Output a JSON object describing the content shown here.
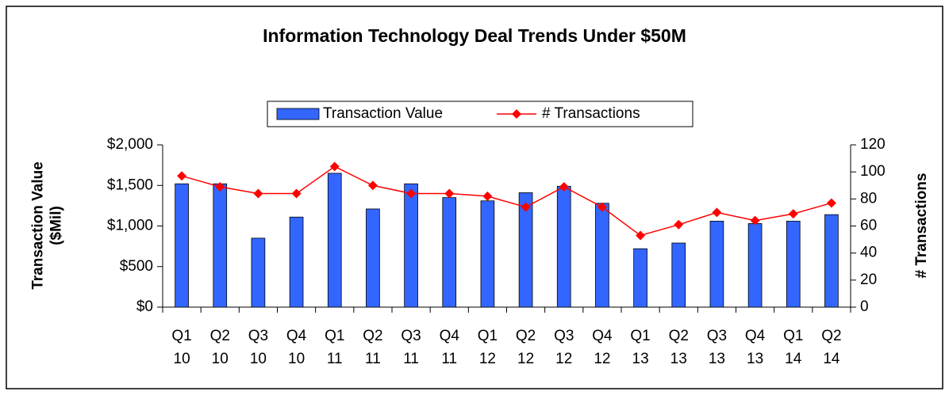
{
  "chart_data": {
    "type": "bar_line",
    "title": "Information Technology Deal Trends Under $50M",
    "y_label": "Transaction Value ($Mil)",
    "y2_label": "# Transactions",
    "categories": [
      [
        "Q1",
        "10"
      ],
      [
        "Q2",
        "10"
      ],
      [
        "Q3",
        "10"
      ],
      [
        "Q4",
        "10"
      ],
      [
        "Q1",
        "11"
      ],
      [
        "Q2",
        "11"
      ],
      [
        "Q3",
        "11"
      ],
      [
        "Q4",
        "11"
      ],
      [
        "Q1",
        "12"
      ],
      [
        "Q2",
        "12"
      ],
      [
        "Q3",
        "12"
      ],
      [
        "Q4",
        "12"
      ],
      [
        "Q1",
        "13"
      ],
      [
        "Q2",
        "13"
      ],
      [
        "Q3",
        "13"
      ],
      [
        "Q4",
        "13"
      ],
      [
        "Q1",
        "14"
      ],
      [
        "Q2",
        "14"
      ]
    ],
    "series": [
      {
        "name": "Transaction Value",
        "kind": "bar",
        "color": "#3366ff",
        "values": [
          1520,
          1520,
          850,
          1110,
          1650,
          1210,
          1520,
          1350,
          1310,
          1410,
          1490,
          1280,
          720,
          790,
          1060,
          1030,
          1060,
          1140
        ]
      },
      {
        "name": "# Transactions",
        "kind": "line",
        "axis": "y2",
        "color": "#ff0000",
        "values": [
          97,
          89,
          84,
          84,
          104,
          90,
          84,
          84,
          82,
          74,
          89,
          74,
          53,
          61,
          70,
          64,
          69,
          77
        ]
      }
    ],
    "ylim": [
      0,
      2000
    ],
    "yticks": [
      {
        "value": 0,
        "label": "$0"
      },
      {
        "value": 500,
        "label": "$500"
      },
      {
        "value": 1000,
        "label": "$1,000"
      },
      {
        "value": 1500,
        "label": "$1,500"
      },
      {
        "value": 2000,
        "label": "$2,000"
      }
    ],
    "y2lim": [
      0,
      120
    ],
    "y2ticks": [
      0,
      20,
      40,
      60,
      80,
      100,
      120
    ],
    "legend": "top"
  }
}
